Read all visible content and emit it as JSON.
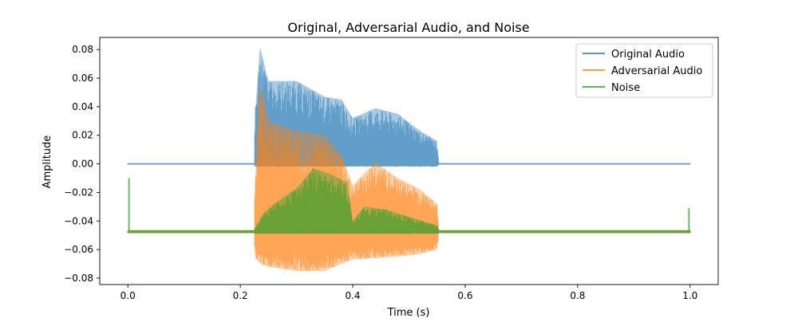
{
  "chart_data": {
    "type": "line",
    "title": "Original, Adversarial Audio, and Noise",
    "xlabel": "Time (s)",
    "ylabel": "Amplitude",
    "xlim": [
      -0.05,
      1.05
    ],
    "ylim": [
      -0.0845,
      0.0885
    ],
    "x_ticks": [
      0.0,
      0.2,
      0.4,
      0.6,
      0.8,
      1.0
    ],
    "x_tick_labels": [
      "0.0",
      "0.2",
      "0.4",
      "0.6",
      "0.8",
      "1.0"
    ],
    "y_ticks": [
      0.08,
      0.06,
      0.04,
      0.02,
      0.0,
      -0.02,
      -0.04,
      -0.06,
      -0.08
    ],
    "y_tick_labels": [
      "0.08",
      "0.06",
      "0.04",
      "0.02",
      "0.00",
      "−0.02",
      "−0.04",
      "−0.06",
      "−0.08"
    ],
    "grid": false,
    "legend_position": "top-right",
    "series": [
      {
        "name": "Original Audio",
        "color": "#1f77b4",
        "baseline": 0.0,
        "x": [
          0.0,
          0.225,
          0.226,
          0.235,
          0.25,
          0.3,
          0.35,
          0.38,
          0.4,
          0.44,
          0.48,
          0.52,
          0.55,
          0.553,
          1.0
        ],
        "upper": [
          0.0005,
          0.0005,
          0.034,
          0.082,
          0.058,
          0.058,
          0.047,
          0.045,
          0.032,
          0.039,
          0.035,
          0.023,
          0.016,
          0.0005,
          0.0005
        ],
        "lower": [
          -0.0005,
          -0.0005,
          -0.002,
          -0.002,
          -0.002,
          -0.002,
          -0.002,
          -0.002,
          -0.002,
          -0.002,
          -0.002,
          -0.002,
          -0.002,
          -0.0005,
          -0.0005
        ]
      },
      {
        "name": "Adversarial Audio",
        "color": "#ff7f0e",
        "baseline": -0.0475,
        "x": [
          0.0,
          0.225,
          0.226,
          0.235,
          0.25,
          0.3,
          0.35,
          0.38,
          0.4,
          0.44,
          0.48,
          0.52,
          0.55,
          0.553,
          1.0
        ],
        "upper": [
          -0.0465,
          -0.0465,
          -0.015,
          0.057,
          0.03,
          0.023,
          0.02,
          0.006,
          -0.015,
          0.001,
          -0.01,
          -0.018,
          -0.028,
          -0.0465,
          -0.0465
        ],
        "lower": [
          -0.0485,
          -0.0485,
          -0.065,
          -0.07,
          -0.072,
          -0.075,
          -0.075,
          -0.07,
          -0.067,
          -0.066,
          -0.065,
          -0.063,
          -0.06,
          -0.0485,
          -0.0485
        ]
      },
      {
        "name": "Noise",
        "color": "#2ca02c",
        "baseline": -0.0475,
        "x": [
          0.0,
          0.225,
          0.226,
          0.24,
          0.26,
          0.3,
          0.33,
          0.36,
          0.39,
          0.4,
          0.42,
          0.46,
          0.5,
          0.55,
          0.553,
          1.0
        ],
        "upper": [
          -0.0465,
          -0.0465,
          -0.045,
          -0.035,
          -0.028,
          -0.017,
          -0.003,
          -0.007,
          -0.013,
          -0.04,
          -0.03,
          -0.032,
          -0.037,
          -0.043,
          -0.0465,
          -0.0465
        ],
        "lower": [
          -0.0485,
          -0.0485,
          -0.049,
          -0.049,
          -0.049,
          -0.049,
          -0.049,
          -0.049,
          -0.049,
          -0.049,
          -0.049,
          -0.049,
          -0.049,
          -0.049,
          -0.0485,
          -0.0485
        ],
        "spikes": [
          {
            "x": 0.002,
            "y": -0.01
          },
          {
            "x": 0.998,
            "y": -0.031
          }
        ]
      }
    ]
  }
}
